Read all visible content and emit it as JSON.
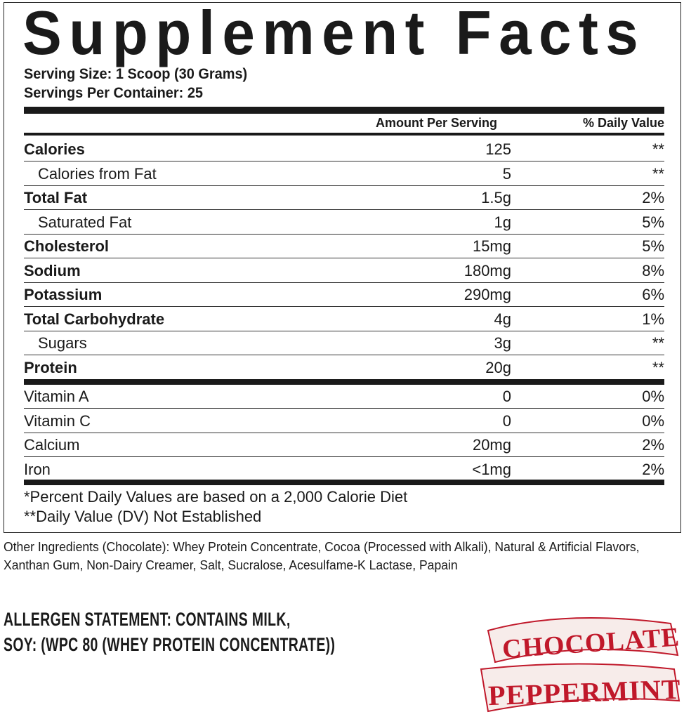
{
  "title": "Supplement Facts",
  "serving_size": "Serving Size: 1 Scoop (30 Grams)",
  "servings_per_container": "Servings Per Container: 25",
  "headers": {
    "amount": "Amount Per Serving",
    "dv": "% Daily Value"
  },
  "nutrients": [
    {
      "name": "Calories",
      "amount": "125",
      "dv": "**"
    },
    {
      "name": "Calories from Fat",
      "amount": "5",
      "dv": "**"
    },
    {
      "name": "Total Fat",
      "amount": "1.5g",
      "dv": "2%"
    },
    {
      "name": "Saturated Fat",
      "amount": "1g",
      "dv": "5%"
    },
    {
      "name": "Cholesterol",
      "amount": "15mg",
      "dv": "5%"
    },
    {
      "name": "Sodium",
      "amount": "180mg",
      "dv": "8%"
    },
    {
      "name": "Potassium",
      "amount": "290mg",
      "dv": "6%"
    },
    {
      "name": "Total Carbohydrate",
      "amount": "4g",
      "dv": "1%"
    },
    {
      "name": "Sugars",
      "amount": "3g",
      "dv": "**"
    },
    {
      "name": "Protein",
      "amount": "20g",
      "dv": "**"
    }
  ],
  "vitamins": [
    {
      "name": "Vitamin A",
      "amount": "0",
      "dv": "0%"
    },
    {
      "name": "Vitamin C",
      "amount": "0",
      "dv": "0%"
    },
    {
      "name": "Calcium",
      "amount": "20mg",
      "dv": "2%"
    },
    {
      "name": "Iron",
      "amount": "<1mg",
      "dv": "2%"
    }
  ],
  "footnotes": [
    "*Percent Daily Values are based on a 2,000 Calorie Diet",
    "**Daily Value (DV) Not Established"
  ],
  "ingredients": "Other Ingredients (Chocolate): Whey Protein Concentrate, Cocoa (Processed with Alkali), Natural & Artificial Flavors, Xanthan Gum, Non-Dairy Creamer, Salt, Sucralose, Acesulfame-K Lactase, Papain",
  "allergen": [
    "ALLERGEN STATEMENT: CONTAINS MILK,",
    "SOY: (WPC 80 (WHEY PROTEIN CONCENTRATE))"
  ],
  "flavor_logo": {
    "line1": "CHOCOLATE",
    "line2": "PEPPERMINT",
    "color": "#c0182a",
    "banner": "#f7ecea"
  }
}
